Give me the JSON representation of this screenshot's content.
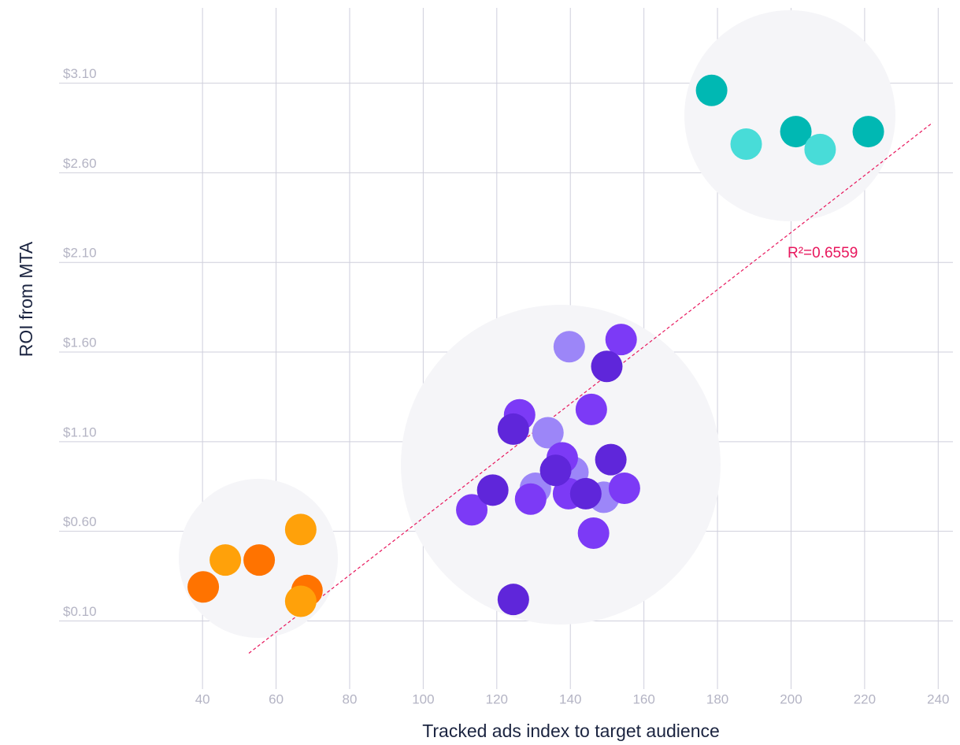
{
  "chart_data": {
    "type": "scatter",
    "x_label": "Tracked ads index to target audience",
    "y_label": "ROI from MTA",
    "xlim": [
      1,
      244
    ],
    "ylim": [
      -0.28,
      3.52
    ],
    "xticks": [
      40,
      60,
      80,
      100,
      120,
      140,
      160,
      180,
      200,
      220,
      240
    ],
    "yticks": [
      {
        "value": 0.1,
        "label": "$0.10"
      },
      {
        "value": 0.6,
        "label": "$0.60"
      },
      {
        "value": 1.1,
        "label": "$1.10"
      },
      {
        "value": 1.6,
        "label": "$1.60"
      },
      {
        "value": 2.1,
        "label": "$2.10"
      },
      {
        "value": 2.6,
        "label": "$2.60"
      },
      {
        "value": 3.1,
        "label": "$3.10"
      }
    ],
    "grid": true,
    "series": [
      {
        "color": "#ff7300",
        "x": [
          40.2,
          55.4,
          68.4
        ],
        "values": [
          0.29,
          0.44,
          0.27
        ]
      },
      {
        "color": "#ffa10a",
        "x": [
          46.2,
          66.7,
          66.7
        ],
        "values": [
          0.44,
          0.61,
          0.21
        ]
      },
      {
        "color": "#00b8b3",
        "x": [
          178.4,
          201.3,
          221.0
        ],
        "values": [
          3.06,
          2.83,
          2.83
        ]
      },
      {
        "color": "#48dcd8",
        "x": [
          187.8,
          207.9
        ],
        "values": [
          2.76,
          2.73
        ]
      },
      {
        "color": "#9c86f8",
        "x": [
          139.7,
          133.9,
          140.7,
          130.5,
          149.1
        ],
        "values": [
          1.63,
          1.15,
          0.93,
          0.84,
          0.79
        ]
      },
      {
        "color": "#7c3af6",
        "x": [
          153.8,
          145.7,
          126.2,
          137.8,
          113.2,
          129.2,
          139.5,
          154.7,
          146.3
        ],
        "values": [
          1.67,
          1.28,
          1.25,
          1.01,
          0.72,
          0.78,
          0.81,
          0.84,
          0.59
        ]
      },
      {
        "color": "#5f26da",
        "x": [
          149.9,
          124.5,
          136.0,
          151.0,
          118.9,
          144.2,
          124.5
        ],
        "values": [
          1.52,
          1.17,
          0.94,
          1.0,
          0.83,
          0.81,
          0.22
        ]
      }
    ],
    "trendline": {
      "color": "#e8175d",
      "x": [
        52.6,
        238.5
      ],
      "y": [
        -0.08,
        2.88
      ],
      "label": "R²=0.6559"
    }
  }
}
